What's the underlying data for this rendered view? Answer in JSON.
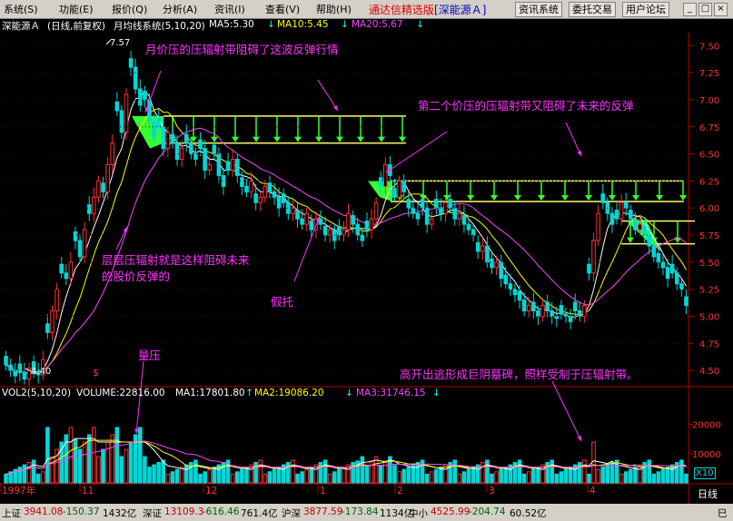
{
  "menu": {
    "items": [
      "系统(S)",
      "功能(E)",
      "报价(Q)",
      "分析(A)",
      "资讯(I)",
      "查看(V)",
      "帮助(H)"
    ],
    "app_title": "通达信精选版",
    "app_subtitle": "[深能源Ａ]",
    "buttons": [
      "资讯系统",
      "委托交易",
      "用户论坛"
    ],
    "window_controls": [
      "_",
      "□",
      "×"
    ]
  },
  "info": {
    "stock": "深能源Ａ",
    "period": "(日线,前复权)",
    "indicator": "月均线系统(5,10,20)",
    "ma5": "MA5:5.30",
    "ma10": "MA10:5.45",
    "ma20": "MA20:5.67",
    "arrow_down": "↓",
    "colors": {
      "ma5": "#ffffff",
      "ma10": "#ffff00",
      "ma20": "#ff44ff"
    }
  },
  "volume_info": {
    "label": "VOL2(5,10,20)",
    "volume": "VOLUME:22816.00",
    "ma1": "MA1:17801.80",
    "ma2": "MA2:19086.20",
    "ma3": "MA3:31746.15",
    "arrow_up": "↑",
    "arrow_down": "↓",
    "colors": {
      "ma1": "#ffffff",
      "ma2": "#ffff00",
      "ma3": "#ff44ff"
    }
  },
  "chart_data": {
    "type": "candlestick",
    "price_axis": {
      "ticks": [
        "7.50",
        "7.25",
        "7.00",
        "6.75",
        "6.50",
        "6.25",
        "6.00",
        "5.75",
        "5.50",
        "5.25",
        "5.00",
        "4.75",
        "4.50"
      ],
      "min": 4.35,
      "max": 7.62
    },
    "volume_axis": {
      "ticks": [
        "20000",
        "10000"
      ],
      "multiplier": "X10"
    },
    "x_labels": [
      "1997年",
      "11",
      "12",
      "1",
      "2",
      "3",
      "4"
    ],
    "high_label": "7.57",
    "low_label": "4.40",
    "period_label": "日线",
    "colors": {
      "up": "#ff3030",
      "down": "#00d8d8",
      "resistance_band": "#33ff33",
      "band_lines": "#ffff66",
      "annotation": "#ff33ff"
    },
    "annotations": [
      "月价压的压辐射带阻碍了这波反弹行情",
      "第二个价压的压辐射带又阻碍了未来的反弹",
      "层层压辐射就是这样阻碍未来的股价反弹的",
      "假托",
      "量压",
      "高开出逃形成巨阴墓碑，照样受制于压辐射带。"
    ],
    "marker": "$"
  },
  "status": {
    "items": [
      {
        "name": "上证",
        "value": "3941.08",
        "change": "-150.37",
        "amount": "1432亿"
      },
      {
        "name": "深证",
        "value": "13109.3",
        "change": "-616.46",
        "amount": "761.4亿"
      },
      {
        "name": "沪深",
        "value": "3877.59",
        "change": "-173.84",
        "amount": "1134亿"
      },
      {
        "name": "中小",
        "value": "4525.99",
        "change": "-204.74",
        "amount": "60.52亿"
      }
    ],
    "right": "巳"
  }
}
